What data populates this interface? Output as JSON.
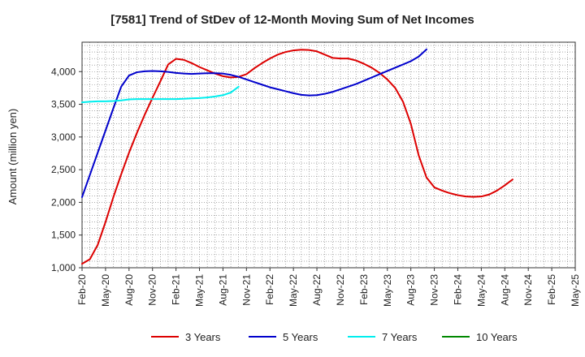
{
  "chart_data": {
    "type": "line",
    "title": "[7581]  Trend of StDev of 12-Month Moving Sum of Net Incomes",
    "ylabel": "Amount (million yen)",
    "xlabel": "",
    "ylim": [
      1000,
      4450
    ],
    "yticks": [
      1000,
      1500,
      2000,
      2500,
      3000,
      3500,
      4000
    ],
    "ytick_labels": [
      "1,000",
      "1,500",
      "2,000",
      "2,500",
      "3,000",
      "3,500",
      "4,000"
    ],
    "x_start": "Feb-20",
    "x_end": "May-25",
    "xtick_labels": [
      "Feb-20",
      "May-20",
      "Aug-20",
      "Nov-20",
      "Feb-21",
      "May-21",
      "Aug-21",
      "Nov-21",
      "Feb-22",
      "May-22",
      "Aug-22",
      "Nov-22",
      "Feb-23",
      "May-23",
      "Aug-23",
      "Nov-23",
      "Feb-24",
      "May-24",
      "Aug-24",
      "Nov-24",
      "Feb-25",
      "May-25"
    ],
    "grid": true,
    "legend_position": "bottom",
    "series": [
      {
        "name": "3 Years",
        "color": "#dd0000",
        "points": [
          [
            "Feb-20",
            1060
          ],
          [
            "Mar-20",
            1130
          ],
          [
            "Apr-20",
            1350
          ],
          [
            "May-20",
            1700
          ],
          [
            "Jun-20",
            2080
          ],
          [
            "Jul-20",
            2430
          ],
          [
            "Aug-20",
            2760
          ],
          [
            "Sep-20",
            3060
          ],
          [
            "Oct-20",
            3340
          ],
          [
            "Nov-20",
            3600
          ],
          [
            "Dec-20",
            3850
          ],
          [
            "Jan-21",
            4110
          ],
          [
            "Feb-21",
            4195
          ],
          [
            "Mar-21",
            4180
          ],
          [
            "Apr-21",
            4130
          ],
          [
            "May-21",
            4070
          ],
          [
            "Jun-21",
            4020
          ],
          [
            "Jul-21",
            3970
          ],
          [
            "Aug-21",
            3930
          ],
          [
            "Sep-21",
            3910
          ],
          [
            "Oct-21",
            3920
          ],
          [
            "Nov-21",
            3960
          ],
          [
            "Dec-21",
            4050
          ],
          [
            "Jan-22",
            4130
          ],
          [
            "Feb-22",
            4200
          ],
          [
            "Mar-22",
            4260
          ],
          [
            "Apr-22",
            4300
          ],
          [
            "May-22",
            4325
          ],
          [
            "Jun-22",
            4335
          ],
          [
            "Jul-22",
            4330
          ],
          [
            "Aug-22",
            4310
          ],
          [
            "Sep-22",
            4260
          ],
          [
            "Oct-22",
            4210
          ],
          [
            "Nov-22",
            4200
          ],
          [
            "Dec-22",
            4200
          ],
          [
            "Jan-23",
            4170
          ],
          [
            "Feb-23",
            4120
          ],
          [
            "Mar-23",
            4060
          ],
          [
            "Apr-23",
            3980
          ],
          [
            "May-23",
            3880
          ],
          [
            "Jun-23",
            3750
          ],
          [
            "Jul-23",
            3540
          ],
          [
            "Aug-23",
            3200
          ],
          [
            "Sep-23",
            2720
          ],
          [
            "Oct-23",
            2380
          ],
          [
            "Nov-23",
            2230
          ],
          [
            "Dec-23",
            2180
          ],
          [
            "Jan-24",
            2140
          ],
          [
            "Feb-24",
            2110
          ],
          [
            "Mar-24",
            2090
          ],
          [
            "Apr-24",
            2085
          ],
          [
            "May-24",
            2090
          ],
          [
            "Jun-24",
            2120
          ],
          [
            "Jul-24",
            2180
          ],
          [
            "Aug-24",
            2260
          ],
          [
            "Sep-24",
            2350
          ]
        ]
      },
      {
        "name": "5 Years",
        "color": "#0000cc",
        "points": [
          [
            "Feb-20",
            2080
          ],
          [
            "Mar-20",
            2420
          ],
          [
            "Apr-20",
            2760
          ],
          [
            "May-20",
            3100
          ],
          [
            "Jun-20",
            3440
          ],
          [
            "Jul-20",
            3770
          ],
          [
            "Aug-20",
            3940
          ],
          [
            "Sep-20",
            3990
          ],
          [
            "Oct-20",
            4005
          ],
          [
            "Nov-20",
            4010
          ],
          [
            "Dec-20",
            4005
          ],
          [
            "Jan-21",
            3995
          ],
          [
            "Feb-21",
            3980
          ],
          [
            "Mar-21",
            3970
          ],
          [
            "Apr-21",
            3965
          ],
          [
            "May-21",
            3970
          ],
          [
            "Jun-21",
            3975
          ],
          [
            "Jul-21",
            3975
          ],
          [
            "Aug-21",
            3970
          ],
          [
            "Sep-21",
            3950
          ],
          [
            "Oct-21",
            3920
          ],
          [
            "Nov-21",
            3880
          ],
          [
            "Dec-21",
            3840
          ],
          [
            "Jan-22",
            3800
          ],
          [
            "Feb-22",
            3760
          ],
          [
            "Mar-22",
            3730
          ],
          [
            "Apr-22",
            3700
          ],
          [
            "May-22",
            3670
          ],
          [
            "Jun-22",
            3645
          ],
          [
            "Jul-22",
            3635
          ],
          [
            "Aug-22",
            3640
          ],
          [
            "Sep-22",
            3660
          ],
          [
            "Oct-22",
            3690
          ],
          [
            "Nov-22",
            3730
          ],
          [
            "Dec-22",
            3770
          ],
          [
            "Jan-23",
            3810
          ],
          [
            "Feb-23",
            3860
          ],
          [
            "Mar-23",
            3910
          ],
          [
            "Apr-23",
            3960
          ],
          [
            "May-23",
            4010
          ],
          [
            "Jun-23",
            4060
          ],
          [
            "Jul-23",
            4110
          ],
          [
            "Aug-23",
            4160
          ],
          [
            "Sep-23",
            4230
          ],
          [
            "Oct-23",
            4340
          ]
        ]
      },
      {
        "name": "7 Years",
        "color": "#00eeee",
        "points": [
          [
            "Feb-20",
            3530
          ],
          [
            "Mar-20",
            3540
          ],
          [
            "Apr-20",
            3545
          ],
          [
            "May-20",
            3545
          ],
          [
            "Jun-20",
            3550
          ],
          [
            "Jul-20",
            3560
          ],
          [
            "Aug-20",
            3575
          ],
          [
            "Sep-20",
            3580
          ],
          [
            "Oct-20",
            3580
          ],
          [
            "Nov-20",
            3580
          ],
          [
            "Dec-20",
            3580
          ],
          [
            "Jan-21",
            3580
          ],
          [
            "Feb-21",
            3580
          ],
          [
            "Mar-21",
            3585
          ],
          [
            "Apr-21",
            3590
          ],
          [
            "May-21",
            3595
          ],
          [
            "Jun-21",
            3605
          ],
          [
            "Jul-21",
            3620
          ],
          [
            "Aug-21",
            3640
          ],
          [
            "Sep-21",
            3680
          ],
          [
            "Oct-21",
            3770
          ]
        ]
      },
      {
        "name": "10 Years",
        "color": "#008800",
        "points": []
      }
    ]
  }
}
